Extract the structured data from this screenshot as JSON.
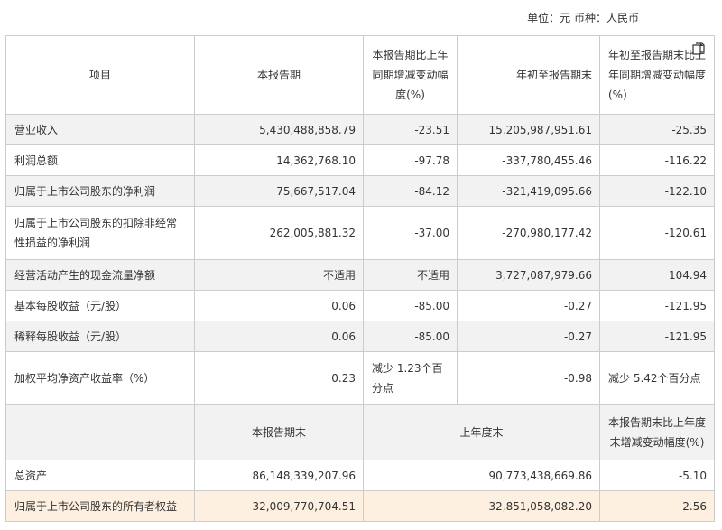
{
  "unit_note": "单位：元 币种：人民币",
  "header": {
    "item": "项目",
    "current_period": "本报告期",
    "yoy_change": "本报告期比上年同期增减变动幅度(%)",
    "ytd": "年初至报告期末",
    "ytd_change": "年初至报告期末比上年同期增减变动幅度(%)"
  },
  "rows": [
    {
      "label": "营业收入",
      "current": "5,430,488,858.79",
      "yoy": "-23.51",
      "ytd": "15,205,987,951.61",
      "ytd_change": "-25.35"
    },
    {
      "label": "利润总额",
      "current": "14,362,768.10",
      "yoy": "-97.78",
      "ytd": "-337,780,455.46",
      "ytd_change": "-116.22"
    },
    {
      "label": "归属于上市公司股东的净利润",
      "current": "75,667,517.04",
      "yoy": "-84.12",
      "ytd": "-321,419,095.66",
      "ytd_change": "-122.10"
    },
    {
      "label": "归属于上市公司股东的扣除非经常性损益的净利润",
      "current": "262,005,881.32",
      "yoy": "-37.00",
      "ytd": "-270,980,177.42",
      "ytd_change": "-120.61"
    },
    {
      "label": "经营活动产生的现金流量净额",
      "current": "不适用",
      "yoy": "不适用",
      "ytd": "3,727,087,979.66",
      "ytd_change": "104.94"
    },
    {
      "label": "基本每股收益（元/股）",
      "current": "0.06",
      "yoy": "-85.00",
      "ytd": "-0.27",
      "ytd_change": "-121.95"
    },
    {
      "label": "稀释每股收益（元/股）",
      "current": "0.06",
      "yoy": "-85.00",
      "ytd": "-0.27",
      "ytd_change": "-121.95"
    },
    {
      "label": "加权平均净资产收益率（%）",
      "current": "0.23",
      "yoy": "减少 1.23个百分点",
      "ytd": "-0.98",
      "ytd_change": "减少 5.42个百分点"
    }
  ],
  "sub_header": {
    "period_end": "本报告期末",
    "last_year_end": "上年度末",
    "change": "本报告期末比上年度末增减变动幅度(%)"
  },
  "balance_rows": [
    {
      "label": "总资产",
      "period_end": "86,148,339,207.96",
      "last_year_end": "90,773,438,669.86",
      "change": "-5.10"
    },
    {
      "label": "归属于上市公司股东的所有者权益",
      "period_end": "32,009,770,704.51",
      "last_year_end": "32,851,058,082.20",
      "change": "-2.56"
    }
  ],
  "icons": {
    "corner": "copy-icon"
  }
}
